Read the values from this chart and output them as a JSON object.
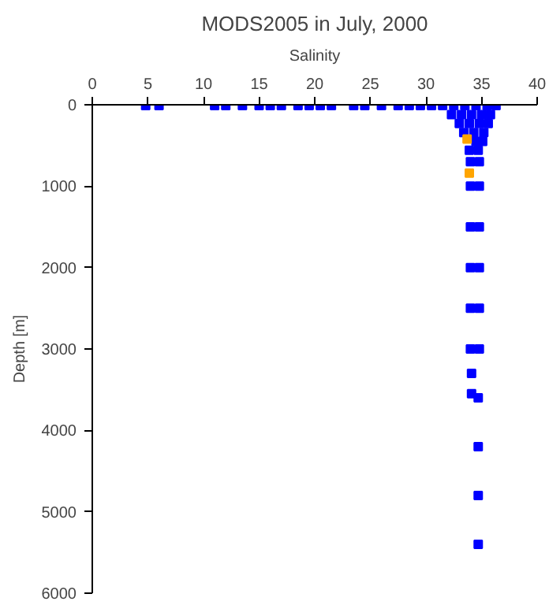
{
  "chart_data": {
    "type": "scatter",
    "title": "MODS2005 in July, 2000",
    "xlabel": "Salinity",
    "ylabel": "Depth [m]",
    "xlim": [
      0,
      40
    ],
    "xticks": [
      0,
      5,
      10,
      15,
      20,
      25,
      30,
      35,
      40
    ],
    "ylim": [
      6000,
      0
    ],
    "yticks": [
      0,
      1000,
      2000,
      3000,
      4000,
      5000,
      6000
    ],
    "grid": false,
    "marker": "square",
    "series": [
      {
        "color": "#0000ff",
        "x": [
          4.8,
          6.0,
          11,
          12,
          13.5,
          15,
          16,
          17,
          18.5,
          19.5,
          20.5,
          21.5,
          23.5,
          24.5,
          26,
          27.5,
          28.5,
          29.5,
          30.5,
          31.5,
          32.5,
          33.5,
          34.5,
          35.5,
          36.3,
          32.3,
          33.2,
          34.1,
          35.0,
          35.8,
          33.0,
          33.9,
          34.8,
          35.6,
          33.4,
          34.3,
          35.2,
          34.5,
          35.1,
          33.9,
          34.7,
          34.0,
          34.8,
          34.0,
          34.8,
          34.0,
          34.8,
          34.0,
          34.8,
          34.0,
          34.8,
          34.0,
          34.8,
          34.1,
          34.1,
          34.7,
          34.7,
          34.7,
          34.7
        ],
        "values": [
          10,
          10,
          10,
          10,
          10,
          10,
          10,
          10,
          10,
          10,
          10,
          10,
          10,
          10,
          10,
          10,
          10,
          10,
          10,
          10,
          10,
          10,
          10,
          10,
          10,
          120,
          120,
          120,
          120,
          120,
          230,
          230,
          230,
          230,
          340,
          340,
          340,
          450,
          450,
          560,
          560,
          700,
          700,
          1000,
          1000,
          1500,
          1500,
          2000,
          2000,
          2500,
          2500,
          3000,
          3000,
          3300,
          3550,
          3600,
          4200,
          4800,
          5400
        ]
      },
      {
        "color": "#ffa500",
        "x": [
          33.7,
          33.9
        ],
        "values": [
          420,
          840
        ]
      }
    ]
  }
}
